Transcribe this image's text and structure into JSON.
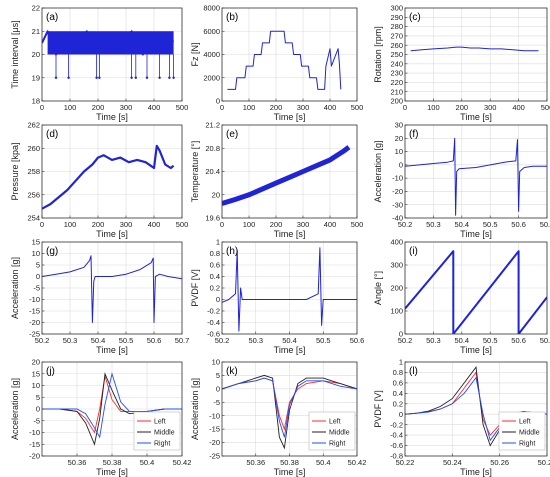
{
  "colors": {
    "series": "#1f24d6",
    "left": "#ff2a2a",
    "middle": "#222222",
    "right": "#1f4dff",
    "grid": "#dcdcdc",
    "axis": "#333333"
  },
  "chart_data": [
    {
      "id": "a",
      "type": "line",
      "label": "(a)",
      "xlabel": "Time [s]",
      "ylabel": "Time interval [μs]",
      "xlim": [
        0,
        500
      ],
      "ylim": [
        18,
        22
      ],
      "xticks": [
        0,
        100,
        200,
        300,
        400,
        500
      ],
      "yticks": [
        18,
        19,
        20,
        21,
        22
      ],
      "notes": "dense band 20-21, occasional drops to 19",
      "x": [
        0,
        20,
        50,
        80,
        120,
        160,
        200,
        240,
        280,
        320,
        360,
        400,
        440,
        470
      ],
      "y": [
        20.5,
        21,
        20,
        20.8,
        20.2,
        21,
        20.1,
        20.9,
        20.3,
        21,
        20,
        20.7,
        20.4,
        20.6
      ],
      "drops_x": [
        50,
        95,
        195,
        205,
        320,
        335,
        375,
        420,
        455,
        470
      ],
      "drops_y": 19
    },
    {
      "id": "b",
      "type": "line",
      "label": "(b)",
      "xlabel": "Time [s]",
      "ylabel": "Fz [N]",
      "xlim": [
        0,
        500
      ],
      "ylim": [
        0,
        8000
      ],
      "xticks": [
        0,
        100,
        200,
        300,
        400,
        500
      ],
      "yticks": [
        0,
        2000,
        4000,
        6000,
        8000
      ],
      "x": [
        20,
        50,
        55,
        85,
        90,
        115,
        120,
        145,
        150,
        175,
        180,
        230,
        235,
        260,
        265,
        290,
        295,
        320,
        325,
        350,
        355,
        380,
        385,
        400,
        405,
        430,
        435,
        440
      ],
      "y": [
        1000,
        1000,
        2000,
        2000,
        3000,
        3000,
        4000,
        4000,
        5000,
        5000,
        6000,
        6000,
        5000,
        5000,
        4000,
        4000,
        3000,
        3000,
        2000,
        2000,
        1000,
        1000,
        3000,
        4500,
        3000,
        4500,
        3200,
        1000
      ]
    },
    {
      "id": "c",
      "type": "line",
      "label": "(c)",
      "xlabel": "Time [s]",
      "ylabel": "Rotation [rpm]",
      "xlim": [
        0,
        500
      ],
      "ylim": [
        200,
        300
      ],
      "xticks": [
        0,
        100,
        200,
        300,
        400,
        500
      ],
      "yticks": [
        200,
        210,
        220,
        230,
        240,
        250,
        260,
        270,
        280,
        290,
        300
      ],
      "x": [
        20,
        60,
        100,
        150,
        180,
        200,
        230,
        260,
        300,
        340,
        380,
        420,
        440,
        470
      ],
      "y": [
        254,
        255,
        256,
        257,
        258,
        258,
        257,
        257,
        256,
        256,
        255,
        254,
        254,
        254
      ]
    },
    {
      "id": "d",
      "type": "line",
      "label": "(d)",
      "xlabel": "Time [s]",
      "ylabel": "Pressure [kpa]",
      "xlim": [
        0,
        500
      ],
      "ylim": [
        254,
        262
      ],
      "xticks": [
        0,
        100,
        200,
        300,
        400,
        500
      ],
      "yticks": [
        254,
        256,
        258,
        260,
        262
      ],
      "x": [
        0,
        30,
        60,
        90,
        120,
        150,
        180,
        200,
        220,
        250,
        280,
        310,
        340,
        370,
        400,
        410,
        420,
        440,
        460,
        470
      ],
      "y": [
        254.8,
        255.2,
        255.8,
        256.4,
        257.2,
        258,
        258.6,
        259.2,
        259.4,
        259,
        259.2,
        258.8,
        259,
        258.8,
        258.3,
        260.2,
        259.8,
        258.6,
        258.3,
        258.5
      ]
    },
    {
      "id": "e",
      "type": "line",
      "label": "(e)",
      "xlabel": "Time [s]",
      "ylabel": "Temperature [°]",
      "xlim": [
        0,
        500
      ],
      "ylim": [
        19.6,
        21.2
      ],
      "xticks": [
        0,
        100,
        200,
        300,
        400,
        500
      ],
      "yticks": [
        19.6,
        20,
        20.4,
        20.8,
        21.2
      ],
      "x": [
        0,
        50,
        100,
        150,
        200,
        250,
        300,
        350,
        400,
        450,
        470
      ],
      "y": [
        19.85,
        19.92,
        20.0,
        20.1,
        20.2,
        20.3,
        20.4,
        20.5,
        20.6,
        20.75,
        20.82
      ]
    },
    {
      "id": "f",
      "type": "line",
      "label": "(f)",
      "xlabel": "Time [s]",
      "ylabel": "Acceleration [g]",
      "xlim": [
        50.2,
        50.7
      ],
      "ylim": [
        -40,
        30
      ],
      "xticks": [
        50.2,
        50.3,
        50.4,
        50.5,
        50.6,
        50.7
      ],
      "yticks": [
        -40,
        -30,
        -20,
        -10,
        0,
        10,
        20,
        30
      ],
      "x": [
        50.2,
        50.25,
        50.3,
        50.35,
        50.37,
        50.375,
        50.378,
        50.382,
        50.39,
        50.45,
        50.5,
        50.55,
        50.59,
        50.596,
        50.6,
        50.604,
        50.62,
        50.65,
        50.7
      ],
      "y": [
        -1,
        0,
        1,
        2,
        3,
        20,
        -38,
        -5,
        -3,
        -2,
        0,
        2,
        3,
        19,
        -35,
        -5,
        -2,
        -1,
        -1
      ]
    },
    {
      "id": "g",
      "type": "line",
      "label": "(g)",
      "xlabel": "Time [s]",
      "ylabel": "Acceleration [g]",
      "xlim": [
        50.2,
        50.7
      ],
      "ylim": [
        -25,
        15
      ],
      "xticks": [
        50.2,
        50.3,
        50.4,
        50.5,
        50.6,
        50.7
      ],
      "yticks": [
        -25,
        -20,
        -15,
        -10,
        -5,
        0,
        5,
        10,
        15
      ],
      "x": [
        50.2,
        50.25,
        50.3,
        50.35,
        50.37,
        50.375,
        50.38,
        50.385,
        50.39,
        50.45,
        50.5,
        50.55,
        50.59,
        50.597,
        50.6,
        50.605,
        50.62,
        50.65,
        50.7
      ],
      "y": [
        0,
        1,
        2,
        4,
        7,
        9,
        -20,
        -2,
        0,
        0,
        1,
        3,
        6,
        8,
        -20,
        0,
        1,
        0,
        -1
      ]
    },
    {
      "id": "h",
      "type": "line",
      "label": "(h)",
      "xlabel": "Time [s]",
      "ylabel": "PVDF [V]",
      "xlim": [
        50.2,
        50.6
      ],
      "ylim": [
        -0.6,
        1
      ],
      "xticks": [
        50.2,
        50.3,
        50.4,
        50.5,
        50.6
      ],
      "yticks": [
        -0.6,
        -0.4,
        -0.2,
        0,
        0.2,
        0.4,
        0.6,
        0.8,
        1
      ],
      "x": [
        50.2,
        50.22,
        50.24,
        50.245,
        50.25,
        50.255,
        50.26,
        50.3,
        50.35,
        50.4,
        50.45,
        50.485,
        50.49,
        50.495,
        50.5,
        50.55,
        50.6
      ],
      "y": [
        -0.05,
        0,
        0.1,
        0.85,
        -0.55,
        0.2,
        0,
        0,
        0,
        0,
        0,
        0.1,
        0.9,
        -0.45,
        0,
        0,
        0
      ]
    },
    {
      "id": "i",
      "type": "line",
      "label": "(i)",
      "xlabel": "Time [s]",
      "ylabel": "Angle [°]",
      "xlim": [
        50.2,
        50.7
      ],
      "ylim": [
        0,
        400
      ],
      "xticks": [
        50.2,
        50.3,
        50.4,
        50.5,
        50.6,
        50.7
      ],
      "yticks": [
        0,
        100,
        200,
        300,
        400
      ],
      "x": [
        50.2,
        50.37,
        50.3701,
        50.6,
        50.6001,
        50.7
      ],
      "y": [
        110,
        360,
        0,
        360,
        0,
        160
      ]
    },
    {
      "id": "j",
      "type": "line",
      "label": "(j)",
      "xlabel": "Time [s]",
      "ylabel": "Acceleration [g]",
      "xlim": [
        50.34,
        50.42
      ],
      "ylim": [
        -20,
        20
      ],
      "xticks": [
        50.36,
        50.38,
        50.4,
        50.42
      ],
      "yticks": [
        -20,
        -15,
        -10,
        -5,
        0,
        5,
        10,
        15,
        20
      ],
      "legend": "right",
      "x": [
        50.34,
        50.35,
        50.36,
        50.365,
        50.37,
        50.373,
        50.376,
        50.38,
        50.385,
        50.39,
        50.4,
        50.41,
        50.42
      ],
      "series": [
        {
          "name": "Left",
          "color_key": "left",
          "values": [
            0,
            0,
            -1,
            -4,
            -10,
            0,
            14,
            4,
            -1,
            -1,
            -1,
            0,
            0
          ]
        },
        {
          "name": "Middle",
          "color_key": "middle",
          "values": [
            0,
            0,
            -1,
            -6,
            -15,
            -4,
            15,
            8,
            0,
            -2,
            -1,
            0,
            0
          ]
        },
        {
          "name": "Right",
          "color_key": "right",
          "values": [
            0,
            0,
            0,
            -2,
            -8,
            -12,
            2,
            15,
            3,
            -1,
            -1,
            0,
            0
          ]
        }
      ]
    },
    {
      "id": "k",
      "type": "line",
      "label": "(k)",
      "xlabel": "Time [s]",
      "ylabel": "Acceleration [g]",
      "xlim": [
        50.34,
        50.42
      ],
      "ylim": [
        -25,
        10
      ],
      "xticks": [
        50.36,
        50.38,
        50.4,
        50.42
      ],
      "yticks": [
        -25,
        -20,
        -15,
        -10,
        -5,
        0,
        5,
        10
      ],
      "legend": "right",
      "x": [
        50.34,
        50.35,
        50.36,
        50.365,
        50.37,
        50.374,
        50.377,
        50.38,
        50.385,
        50.39,
        50.4,
        50.41,
        50.42
      ],
      "series": [
        {
          "name": "Left",
          "color_key": "left",
          "values": [
            0,
            2,
            3,
            4,
            3,
            -10,
            -15,
            -5,
            0,
            2,
            3,
            2,
            0
          ]
        },
        {
          "name": "Middle",
          "color_key": "middle",
          "values": [
            0,
            2,
            4,
            5,
            4,
            -18,
            -22,
            -8,
            2,
            4,
            4,
            2,
            0
          ]
        },
        {
          "name": "Right",
          "color_key": "right",
          "values": [
            0,
            2,
            3,
            4,
            3,
            -12,
            -18,
            -6,
            1,
            3,
            3,
            1,
            0
          ]
        }
      ]
    },
    {
      "id": "l",
      "type": "line",
      "label": "(l)",
      "xlabel": "Time [s]",
      "ylabel": "PVDF [V]",
      "xlim": [
        50.22,
        50.28
      ],
      "ylim": [
        -0.8,
        1
      ],
      "xticks": [
        50.22,
        50.24,
        50.26,
        50.28
      ],
      "yticks": [
        -0.8,
        -0.6,
        -0.4,
        -0.2,
        0,
        0.2,
        0.4,
        0.6,
        0.8,
        1
      ],
      "legend": "right",
      "x": [
        50.22,
        50.225,
        50.23,
        50.235,
        50.24,
        50.245,
        50.25,
        50.253,
        50.256,
        50.26,
        50.265,
        50.27,
        50.28
      ],
      "series": [
        {
          "name": "Left",
          "color_key": "left",
          "values": [
            0,
            0.02,
            0.05,
            0.1,
            0.2,
            0.5,
            0.8,
            -0.1,
            -0.4,
            -0.2,
            0,
            0.05,
            0
          ]
        },
        {
          "name": "Middle",
          "color_key": "middle",
          "values": [
            0,
            0.02,
            0.06,
            0.15,
            0.3,
            0.6,
            0.9,
            -0.2,
            -0.6,
            -0.3,
            0,
            0.05,
            0
          ]
        },
        {
          "name": "Right",
          "color_key": "right",
          "values": [
            0,
            0.02,
            0.04,
            0.1,
            0.2,
            0.4,
            0.7,
            0,
            -0.5,
            -0.25,
            0,
            0.05,
            0
          ]
        }
      ]
    }
  ]
}
